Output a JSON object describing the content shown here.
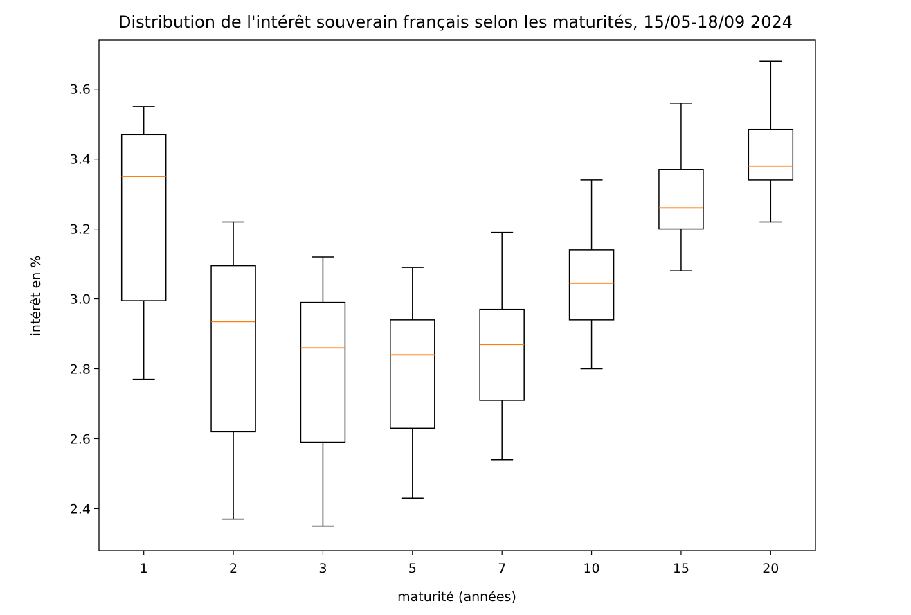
{
  "chart_data": {
    "type": "box",
    "title": "Distribution de l'intérêt souverain français selon les maturités, 15/05-18/09 2024",
    "xlabel": "maturité (années)",
    "ylabel": "intérêt en %",
    "ylim": [
      2.28,
      3.74
    ],
    "yticks": [
      "2.4",
      "2.6",
      "2.8",
      "3.0",
      "3.2",
      "3.4",
      "3.6"
    ],
    "categories": [
      "1",
      "2",
      "3",
      "5",
      "7",
      "10",
      "15",
      "20"
    ],
    "boxes": [
      {
        "min": 2.77,
        "q1": 2.995,
        "median": 3.35,
        "q3": 3.47,
        "max": 3.55
      },
      {
        "min": 2.37,
        "q1": 2.62,
        "median": 2.935,
        "q3": 3.095,
        "max": 3.22
      },
      {
        "min": 2.35,
        "q1": 2.59,
        "median": 2.86,
        "q3": 2.99,
        "max": 3.12
      },
      {
        "min": 2.43,
        "q1": 2.63,
        "median": 2.84,
        "q3": 2.94,
        "max": 3.09
      },
      {
        "min": 2.54,
        "q1": 2.71,
        "median": 2.87,
        "q3": 2.97,
        "max": 3.19
      },
      {
        "min": 2.8,
        "q1": 2.94,
        "median": 3.045,
        "q3": 3.14,
        "max": 3.34
      },
      {
        "min": 3.08,
        "q1": 3.2,
        "median": 3.26,
        "q3": 3.37,
        "max": 3.56
      },
      {
        "min": 3.22,
        "q1": 3.34,
        "median": 3.38,
        "q3": 3.485,
        "max": 3.68
      }
    ],
    "colors": {
      "box": "#000000",
      "median": "#ff7f0e"
    },
    "grid": false,
    "legend": "none"
  }
}
